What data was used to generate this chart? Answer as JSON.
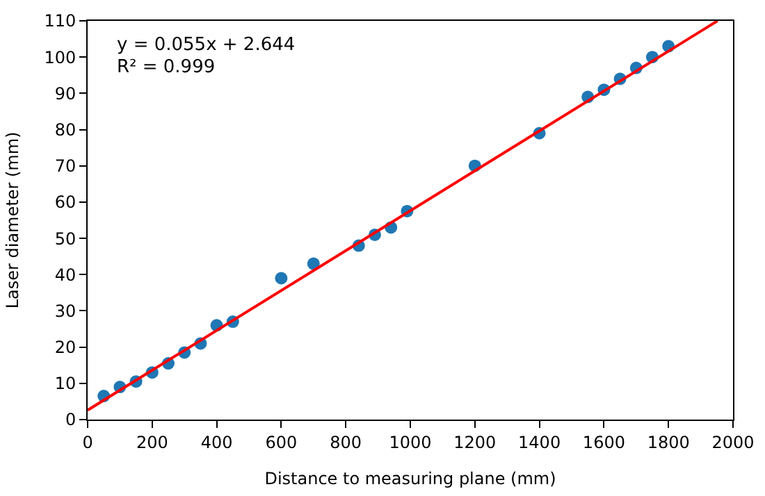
{
  "chart_data": {
    "type": "scatter",
    "xlabel": "Distance to measuring plane (mm)",
    "ylabel": "Laser diameter (mm)",
    "xlim": [
      0,
      2000
    ],
    "ylim": [
      0,
      110
    ],
    "xticks": [
      0,
      200,
      400,
      600,
      800,
      1000,
      1200,
      1400,
      1600,
      1800,
      2000
    ],
    "yticks": [
      0,
      10,
      20,
      30,
      40,
      50,
      60,
      70,
      80,
      90,
      100,
      110
    ],
    "marker": "circle",
    "annotations": [
      "y = 0.055x + 2.644",
      "R² = 0.999"
    ],
    "series": [
      {
        "color": "#1f77b4",
        "x": [
          50,
          100,
          150,
          200,
          250,
          300,
          350,
          400,
          450,
          600,
          700,
          840,
          890,
          940,
          990,
          1200,
          1400,
          1550,
          1600,
          1650,
          1700,
          1750,
          1800
        ],
        "values": [
          6.5,
          9,
          10.5,
          13,
          15.5,
          18.5,
          21,
          26,
          27,
          39,
          43,
          48,
          51,
          53,
          57.5,
          70,
          79,
          89,
          91,
          94,
          97,
          100,
          103
        ]
      },
      {
        "type": "line",
        "color": "#ff0000",
        "x": [
          0,
          1952
        ],
        "values": [
          2.6,
          110
        ],
        "marker": "none",
        "line_style": "solid"
      }
    ]
  }
}
